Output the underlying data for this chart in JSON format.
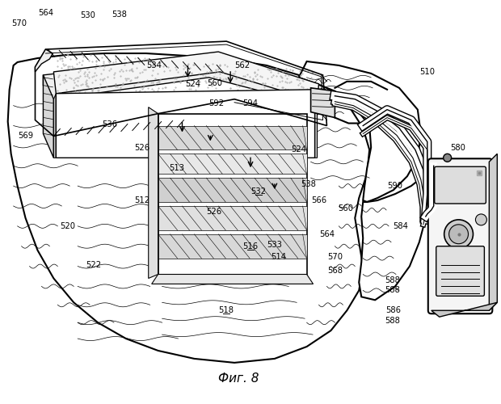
{
  "background_color": "#ffffff",
  "caption": "Фиг. 8",
  "tissue_color": "#f0f0f0",
  "foam_dot_color": "#999999",
  "device_color": "#e8e8e8",
  "line_color": "#000000"
}
